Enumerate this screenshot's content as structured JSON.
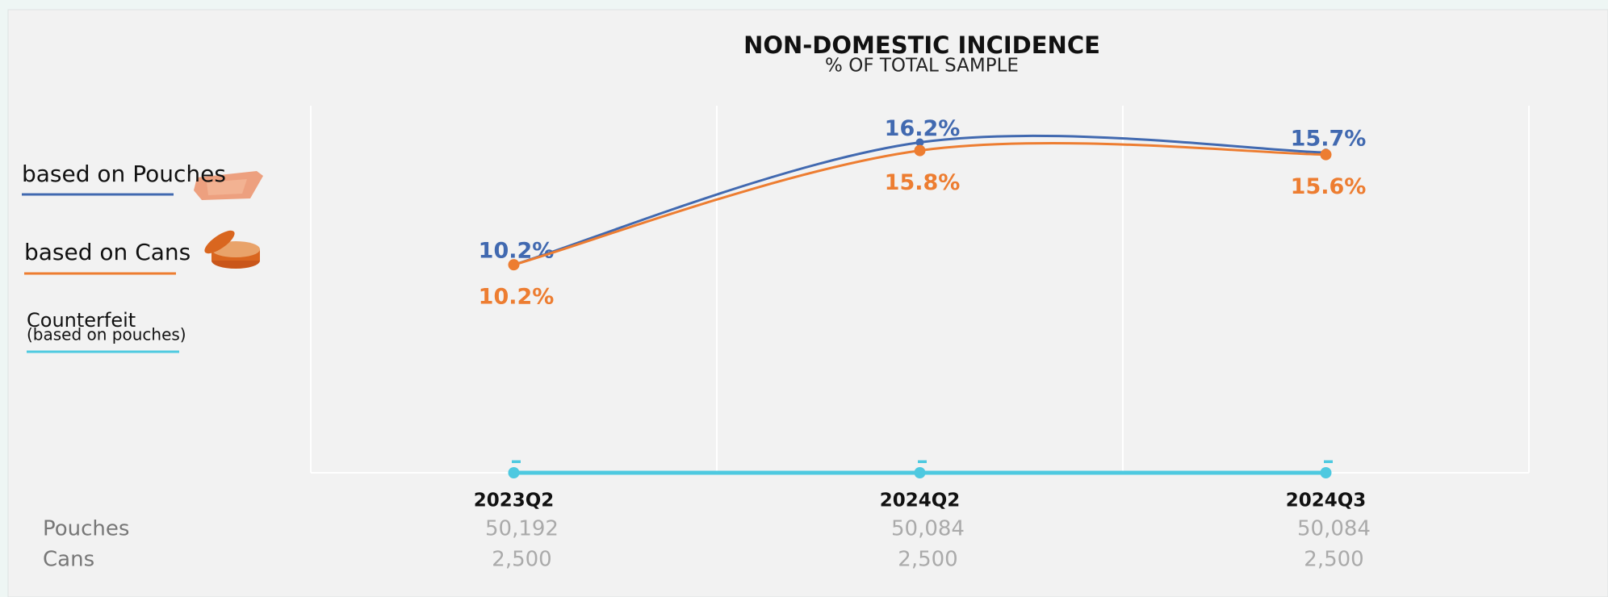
{
  "chart_data": {
    "type": "line",
    "title": "NON-DOMESTIC INCIDENCE",
    "subtitle": "% OF TOTAL SAMPLE",
    "categories": [
      "2023Q2",
      "2024Q2",
      "2024Q3"
    ],
    "series": [
      {
        "name": "based on Pouches",
        "color": "#4169b0",
        "values": [
          10.2,
          16.2,
          15.7
        ],
        "value_labels": [
          "10.2%",
          "16.2%",
          "15.7%"
        ]
      },
      {
        "name": "based on Cans",
        "color": "#ed7d31",
        "values": [
          10.2,
          15.8,
          15.6
        ],
        "value_labels": [
          "10.2%",
          "15.8%",
          "15.6%"
        ]
      },
      {
        "name": "Counterfeit",
        "color": "#4ec9e0",
        "values": [
          0,
          0,
          0
        ],
        "value_labels": [
          "–",
          "–",
          "–"
        ]
      }
    ],
    "legend_note": "(based on pouches)",
    "ylim": [
      0,
      18
    ],
    "smooth": true
  },
  "table": {
    "rows": [
      {
        "label": "Pouches",
        "values": [
          "50,192",
          "50,084",
          "50,084"
        ]
      },
      {
        "label": "Cans",
        "values": [
          "2,500",
          "2,500",
          "2,500"
        ]
      }
    ]
  }
}
